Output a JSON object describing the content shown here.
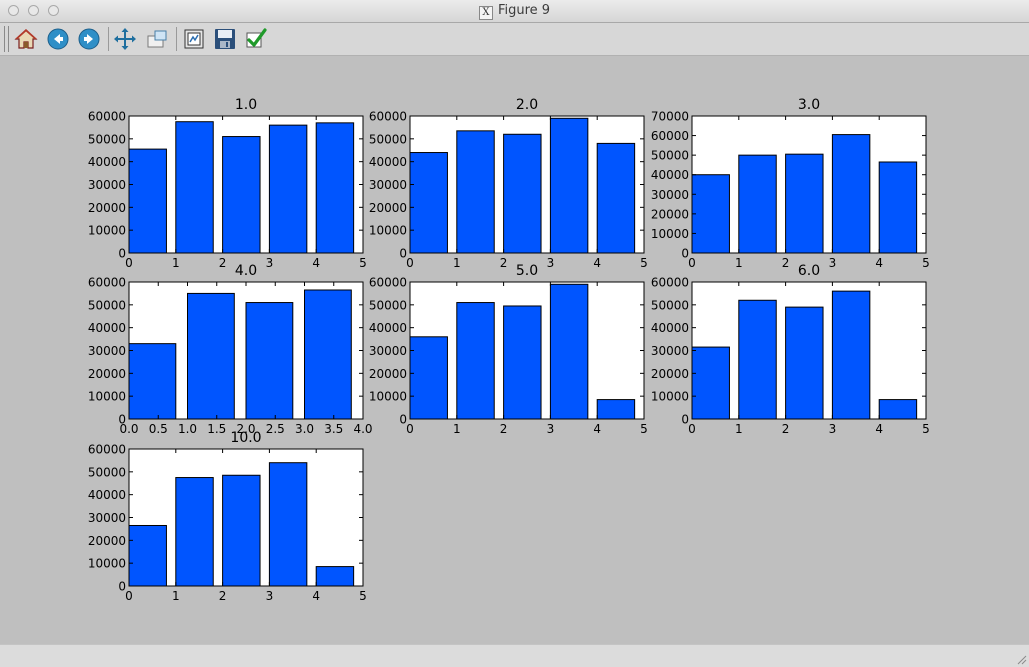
{
  "window": {
    "title": "Figure 9",
    "title_icon_letter": "X"
  },
  "toolbar": {
    "buttons": [
      {
        "name": "home-button",
        "icon": "home-icon"
      },
      {
        "name": "back-button",
        "icon": "back-arrow-icon"
      },
      {
        "name": "forward-button",
        "icon": "forward-arrow-icon"
      },
      {
        "name": "pan-button",
        "icon": "pan-arrows-icon"
      },
      {
        "name": "zoom-button",
        "icon": "zoom-rect-icon"
      },
      {
        "name": "subplots-button",
        "icon": "subplots-icon"
      },
      {
        "name": "save-button",
        "icon": "floppy-disk-icon"
      },
      {
        "name": "edit-axes-button",
        "icon": "checkmark-icon"
      }
    ]
  },
  "colors": {
    "bar": "#0055ff",
    "figure_bg": "#bfbfbf",
    "axes_bg": "#ffffff"
  },
  "chart_data": [
    {
      "type": "bar",
      "title": "1.0",
      "x": [
        0,
        1,
        2,
        3,
        4
      ],
      "values": [
        45500,
        57500,
        51000,
        56000,
        57000
      ],
      "xlim": [
        0,
        5
      ],
      "ylim": [
        0,
        60000
      ],
      "xticks": [
        "0",
        "1",
        "2",
        "3",
        "4",
        "5"
      ],
      "yticks": [
        "0",
        "10000",
        "20000",
        "30000",
        "40000",
        "50000",
        "60000"
      ]
    },
    {
      "type": "bar",
      "title": "2.0",
      "x": [
        0,
        1,
        2,
        3,
        4
      ],
      "values": [
        44000,
        53500,
        52000,
        59000,
        48000
      ],
      "xlim": [
        0,
        5
      ],
      "ylim": [
        0,
        60000
      ],
      "xticks": [
        "0",
        "1",
        "2",
        "3",
        "4",
        "5"
      ],
      "yticks": [
        "0",
        "10000",
        "20000",
        "30000",
        "40000",
        "50000",
        "60000"
      ]
    },
    {
      "type": "bar",
      "title": "3.0",
      "x": [
        0,
        1,
        2,
        3,
        4
      ],
      "values": [
        40000,
        50000,
        50500,
        60500,
        46500
      ],
      "xlim": [
        0,
        5
      ],
      "ylim": [
        0,
        70000
      ],
      "xticks": [
        "0",
        "1",
        "2",
        "3",
        "4",
        "5"
      ],
      "yticks": [
        "0",
        "10000",
        "20000",
        "30000",
        "40000",
        "50000",
        "60000",
        "70000"
      ]
    },
    {
      "type": "bar",
      "title": "4.0",
      "x": [
        0,
        1,
        2,
        3
      ],
      "values": [
        33000,
        55000,
        51000,
        56500
      ],
      "xlim": [
        0,
        4
      ],
      "ylim": [
        0,
        60000
      ],
      "xticks": [
        "0.0",
        "0.5",
        "1.0",
        "1.5",
        "2.0",
        "2.5",
        "3.0",
        "3.5",
        "4.0"
      ],
      "yticks": [
        "0",
        "10000",
        "20000",
        "30000",
        "40000",
        "50000",
        "60000"
      ]
    },
    {
      "type": "bar",
      "title": "5.0",
      "x": [
        0,
        1,
        2,
        3,
        4
      ],
      "values": [
        36000,
        51000,
        49500,
        59000,
        8500
      ],
      "xlim": [
        0,
        5
      ],
      "ylim": [
        0,
        60000
      ],
      "xticks": [
        "0",
        "1",
        "2",
        "3",
        "4",
        "5"
      ],
      "yticks": [
        "0",
        "10000",
        "20000",
        "30000",
        "40000",
        "50000",
        "60000"
      ]
    },
    {
      "type": "bar",
      "title": "6.0",
      "x": [
        0,
        1,
        2,
        3,
        4
      ],
      "values": [
        31500,
        52000,
        49000,
        56000,
        8500
      ],
      "xlim": [
        0,
        5
      ],
      "ylim": [
        0,
        60000
      ],
      "xticks": [
        "0",
        "1",
        "2",
        "3",
        "4",
        "5"
      ],
      "yticks": [
        "0",
        "10000",
        "20000",
        "30000",
        "40000",
        "50000",
        "60000"
      ]
    },
    {
      "type": "bar",
      "title": "10.0",
      "x": [
        0,
        1,
        2,
        3,
        4
      ],
      "values": [
        26500,
        47500,
        48500,
        54000,
        8500
      ],
      "xlim": [
        0,
        5
      ],
      "ylim": [
        0,
        60000
      ],
      "xticks": [
        "0",
        "1",
        "2",
        "3",
        "4",
        "5"
      ],
      "yticks": [
        "0",
        "10000",
        "20000",
        "30000",
        "40000",
        "50000",
        "60000"
      ]
    }
  ]
}
